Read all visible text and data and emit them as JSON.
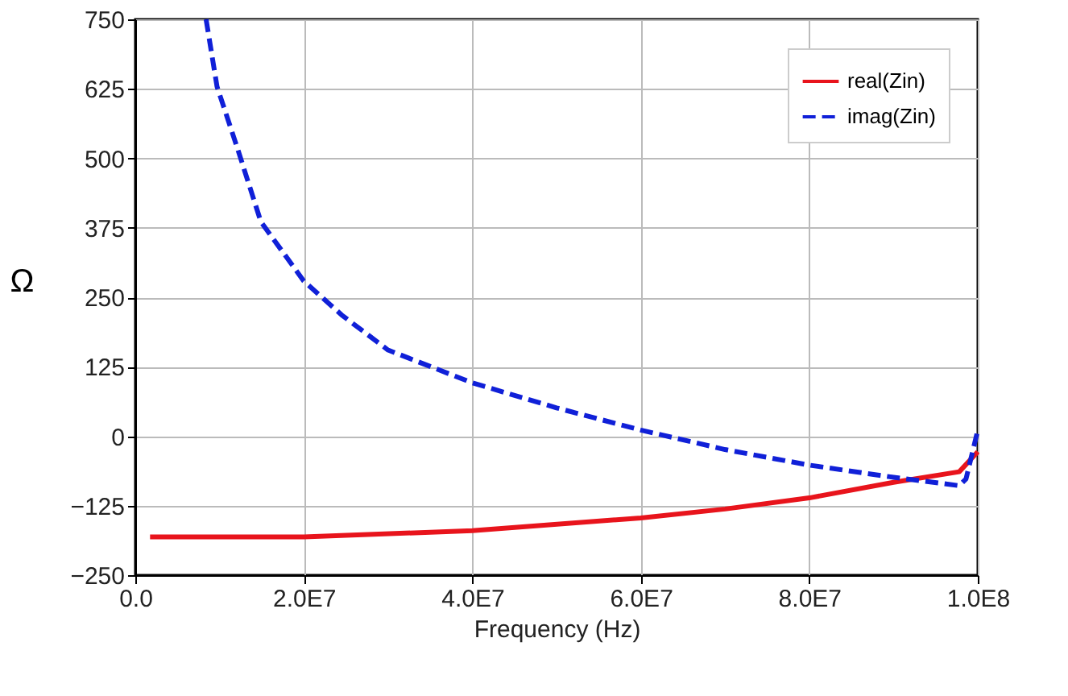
{
  "chart_data": {
    "type": "line",
    "xlabel": "Frequency (Hz)",
    "ylabel": "Ω",
    "xlim": [
      0,
      100000000
    ],
    "ylim": [
      -250,
      750
    ],
    "xticks": [
      {
        "value": 0,
        "label": "0.0"
      },
      {
        "value": 20000000,
        "label": "2.0E7"
      },
      {
        "value": 40000000,
        "label": "4.0E7"
      },
      {
        "value": 60000000,
        "label": "6.0E7"
      },
      {
        "value": 80000000,
        "label": "8.0E7"
      },
      {
        "value": 100000000,
        "label": "1.0E8"
      }
    ],
    "yticks": [
      -250,
      -125,
      0,
      125,
      250,
      375,
      500,
      625,
      750
    ],
    "grid": true,
    "legend": "top right",
    "marker": "none",
    "series": [
      {
        "name": "real(Zin)",
        "color": "#e8141c",
        "line_style": "solid",
        "x": [
          1750000,
          20000000,
          40000000,
          60000000,
          70000000,
          80000000,
          90000000,
          97800000,
          100000000
        ],
        "values": [
          -181,
          -181,
          -170,
          -147,
          -131,
          -111,
          -83,
          -64,
          -28
        ]
      },
      {
        "name": "imag(Zin)",
        "color": "#1020d8",
        "line_style": "dashed",
        "x": [
          8400000,
          9700000,
          12100000,
          14900000,
          20000000,
          24500000,
          30000000,
          40000000,
          50000000,
          60000000,
          70000000,
          80000000,
          90000000,
          97800000,
          98600000,
          100000000
        ],
        "values": [
          750,
          629,
          519,
          386,
          279,
          218,
          155,
          96,
          51,
          11,
          -24,
          -52,
          -74,
          -89,
          -77,
          11
        ]
      }
    ]
  }
}
